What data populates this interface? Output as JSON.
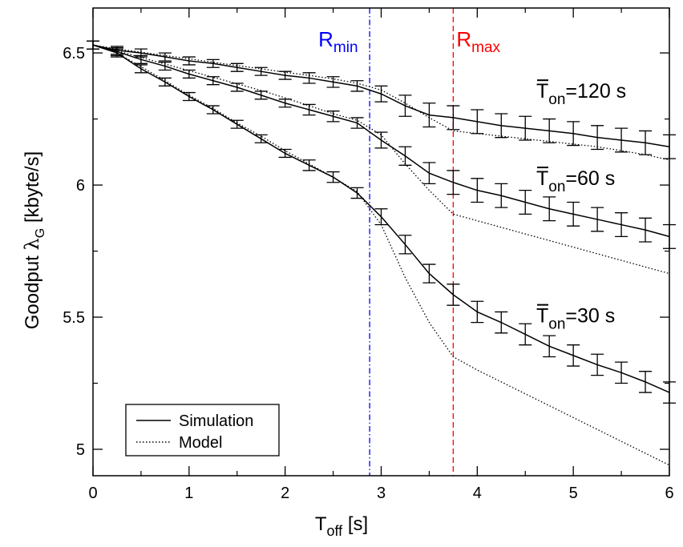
{
  "chart_data": {
    "type": "line",
    "xlabel_main": "T",
    "xlabel_sub": "off",
    "xlabel_tail": " [s]",
    "ylabel_main": "Goodput ",
    "ylabel_symbol": "λ",
    "ylabel_sub": "G",
    "ylabel_tail": " [kbyte/s]",
    "xlim": [
      0,
      6
    ],
    "ylim": [
      4.9,
      6.67
    ],
    "xticks": [
      0,
      1,
      2,
      3,
      4,
      5,
      6
    ],
    "xtick_labels": [
      "0",
      "1",
      "2",
      "3",
      "4",
      "5",
      "6"
    ],
    "yticks": [
      5,
      5.5,
      6,
      6.5
    ],
    "ytick_labels": [
      "5",
      "5.5",
      "6",
      "6.5"
    ],
    "vlines": [
      {
        "x": 2.88,
        "main": "R",
        "sub": "min",
        "color": "#0000ff",
        "style": "dashdot"
      },
      {
        "x": 3.75,
        "main": "R",
        "sub": "max",
        "color": "#ff0000",
        "style": "dashed"
      }
    ],
    "legend": {
      "placement": "bottom-left",
      "entries": [
        {
          "label": "Simulation",
          "style": "solid"
        },
        {
          "label": "Model",
          "style": "dotted"
        }
      ]
    },
    "series_labels": [
      {
        "main": "T",
        "sub": "on",
        "tail": "=120 s",
        "x": 6.0,
        "y": 6.33
      },
      {
        "main": "T",
        "sub": "on",
        "tail": "=60 s",
        "x": 6.0,
        "y": 6.0
      },
      {
        "main": "T",
        "sub": "on",
        "tail": "=30 s",
        "x": 6.0,
        "y": 5.48
      }
    ],
    "series": [
      {
        "group": "120",
        "x": [
          0,
          0.25,
          0.5,
          0.75,
          1,
          1.25,
          1.5,
          1.75,
          2,
          2.25,
          2.5,
          2.75,
          3,
          3.25,
          3.5,
          3.75,
          4,
          4.25,
          4.5,
          4.75,
          5,
          5.25,
          5.5,
          5.75,
          6
        ],
        "simulation": [
          6.53,
          6.51,
          6.5,
          6.485,
          6.47,
          6.46,
          6.445,
          6.43,
          6.415,
          6.405,
          6.39,
          6.375,
          6.345,
          6.3,
          6.265,
          6.255,
          6.24,
          6.225,
          6.215,
          6.205,
          6.195,
          6.18,
          6.17,
          6.16,
          6.145
        ],
        "error": [
          0.015,
          0.015,
          0.015,
          0.015,
          0.015,
          0.015,
          0.015,
          0.015,
          0.015,
          0.02,
          0.02,
          0.02,
          0.03,
          0.04,
          0.045,
          0.045,
          0.045,
          0.045,
          0.045,
          0.045,
          0.045,
          0.045,
          0.045,
          0.045,
          0.045
        ],
        "model": [
          6.53,
          6.515,
          6.503,
          6.49,
          6.478,
          6.465,
          6.452,
          6.44,
          6.427,
          6.415,
          6.402,
          6.385,
          6.36,
          6.31,
          6.255,
          6.205,
          6.195,
          6.185,
          6.175,
          6.165,
          6.155,
          6.145,
          6.13,
          6.115,
          6.095
        ]
      },
      {
        "group": "60",
        "x": [
          0,
          0.25,
          0.5,
          0.75,
          1,
          1.25,
          1.5,
          1.75,
          2,
          2.25,
          2.5,
          2.75,
          3,
          3.25,
          3.5,
          3.75,
          4,
          4.25,
          4.5,
          4.75,
          5,
          5.25,
          5.5,
          5.75,
          6
        ],
        "simulation": [
          6.53,
          6.505,
          6.475,
          6.45,
          6.42,
          6.395,
          6.37,
          6.34,
          6.31,
          6.285,
          6.26,
          6.235,
          6.17,
          6.11,
          6.045,
          6.01,
          5.98,
          5.96,
          5.935,
          5.91,
          5.89,
          5.87,
          5.85,
          5.83,
          5.805
        ],
        "error": [
          0.015,
          0.015,
          0.015,
          0.015,
          0.015,
          0.015,
          0.015,
          0.015,
          0.015,
          0.02,
          0.02,
          0.02,
          0.03,
          0.035,
          0.04,
          0.045,
          0.045,
          0.045,
          0.045,
          0.045,
          0.045,
          0.045,
          0.045,
          0.045,
          0.045
        ],
        "model": [
          6.53,
          6.508,
          6.483,
          6.458,
          6.433,
          6.408,
          6.383,
          6.358,
          6.33,
          6.3,
          6.27,
          6.245,
          6.19,
          6.08,
          5.98,
          5.89,
          5.865,
          5.84,
          5.815,
          5.79,
          5.765,
          5.74,
          5.715,
          5.69,
          5.665
        ]
      },
      {
        "group": "30",
        "x": [
          0,
          0.25,
          0.5,
          0.75,
          1,
          1.25,
          1.5,
          1.75,
          2,
          2.25,
          2.5,
          2.75,
          3,
          3.25,
          3.5,
          3.75,
          4,
          4.25,
          4.5,
          4.75,
          5,
          5.25,
          5.5,
          5.75,
          6
        ],
        "simulation": [
          6.53,
          6.5,
          6.44,
          6.39,
          6.335,
          6.285,
          6.23,
          6.175,
          6.12,
          6.075,
          6.03,
          5.97,
          5.88,
          5.775,
          5.665,
          5.585,
          5.52,
          5.48,
          5.435,
          5.39,
          5.355,
          5.32,
          5.29,
          5.255,
          5.215
        ],
        "error": [
          0.015,
          0.015,
          0.015,
          0.015,
          0.015,
          0.015,
          0.015,
          0.015,
          0.015,
          0.02,
          0.02,
          0.02,
          0.03,
          0.035,
          0.035,
          0.04,
          0.04,
          0.04,
          0.04,
          0.04,
          0.04,
          0.04,
          0.04,
          0.04,
          0.04
        ],
        "model": [
          6.53,
          6.5,
          6.448,
          6.395,
          6.34,
          6.29,
          6.235,
          6.185,
          6.13,
          6.08,
          6.03,
          5.975,
          5.85,
          5.65,
          5.48,
          5.35,
          5.3,
          5.255,
          5.21,
          5.165,
          5.12,
          5.075,
          5.03,
          4.985,
          4.94
        ]
      }
    ]
  }
}
